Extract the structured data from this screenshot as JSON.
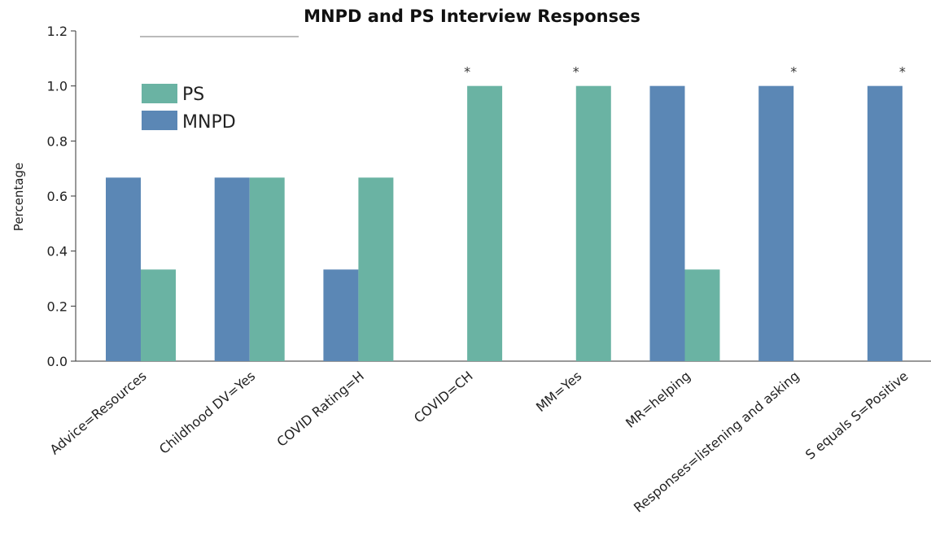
{
  "chart_data": {
    "type": "bar",
    "title": "MNPD and PS Interview Responses",
    "xlabel": "",
    "ylabel": "Percentage",
    "ylim": [
      0,
      1.2
    ],
    "yticks": [
      "0.0",
      "0.2",
      "0.4",
      "0.6",
      "0.8",
      "1.0",
      "1.2"
    ],
    "categories": [
      "Advice=Resources",
      "Childhood DV=Yes",
      "COVID Rating=H",
      "COVID=CH",
      "MM=Yes",
      "MR=helping",
      "Responses=listening and asking",
      "S equals S=Positive"
    ],
    "series": [
      {
        "name": "MNPD",
        "color": "#5b87b5",
        "values": [
          0.667,
          0.667,
          0.333,
          0,
          0,
          1.0,
          1.0,
          1.0
        ]
      },
      {
        "name": "PS",
        "color": "#6ab3a3",
        "values": [
          0.333,
          0.667,
          0.667,
          1.0,
          1.0,
          0.333,
          0,
          0
        ]
      }
    ],
    "annotations": [
      "",
      "",
      "",
      "*",
      "*",
      "",
      "*",
      "*"
    ],
    "legend": [
      "PS",
      "MNPD"
    ],
    "legend_position": "top-left",
    "grid": false
  }
}
